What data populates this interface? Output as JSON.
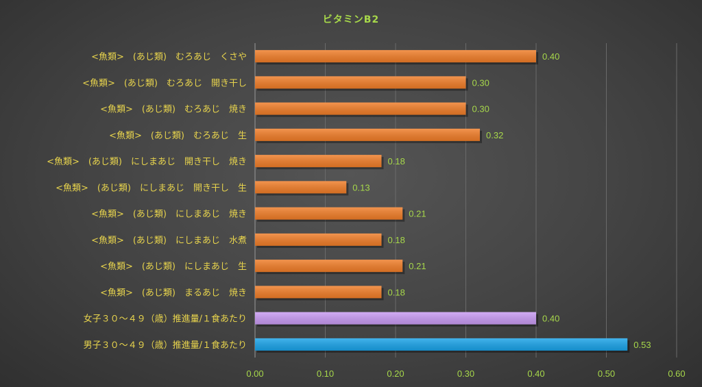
{
  "chart_data": {
    "type": "bar",
    "orientation": "horizontal",
    "title": "ビタミンB2",
    "xlabel": "",
    "ylabel": "",
    "xlim": [
      0,
      0.6
    ],
    "xticks": [
      "0.00",
      "0.10",
      "0.20",
      "0.30",
      "0.40",
      "0.50",
      "0.60"
    ],
    "grid": true,
    "categories": [
      "<魚類>　(あじ類)　むろあじ　くさや",
      "<魚類>　(あじ類)　むろあじ　開き干し",
      "<魚類>　(あじ類)　むろあじ　焼き",
      "<魚類>　(あじ類)　むろあじ　生",
      "<魚類>　(あじ類)　にしまあじ　開き干し　焼き",
      "<魚類>　(あじ類)　にしまあじ　開き干し　生",
      "<魚類>　(あじ類)　にしまあじ　焼き",
      "<魚類>　(あじ類)　にしまあじ　水煮",
      "<魚類>　(あじ類)　にしまあじ　生",
      "<魚類>　(あじ類)　まるあじ　焼き",
      "女子３０～４９（歳）推進量/１食あたり",
      "男子３０～４９（歳）推進量/１食あたり"
    ],
    "values": [
      0.4,
      0.3,
      0.3,
      0.32,
      0.18,
      0.13,
      0.21,
      0.18,
      0.21,
      0.18,
      0.4,
      0.53
    ],
    "value_labels": [
      "0.40",
      "0.30",
      "0.30",
      "0.32",
      "0.18",
      "0.13",
      "0.21",
      "0.18",
      "0.21",
      "0.18",
      "0.40",
      "0.53"
    ],
    "colors": [
      "#f07d28",
      "#f07d28",
      "#f07d28",
      "#f07d28",
      "#f07d28",
      "#f07d28",
      "#f07d28",
      "#f07d28",
      "#f07d28",
      "#f07d28",
      "#c89af2",
      "#1aa3e8"
    ]
  }
}
